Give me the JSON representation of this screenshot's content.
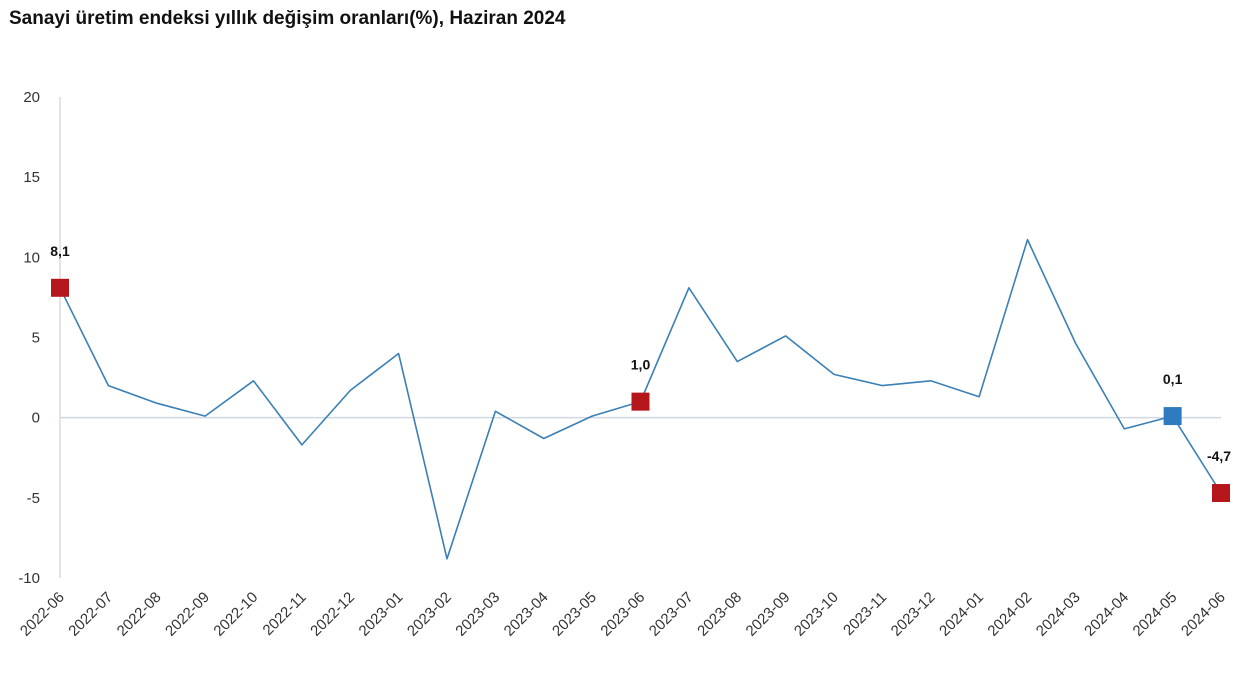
{
  "chart_data": {
    "type": "line",
    "title": "Sanayi üretim endeksi yıllık değişim oranları(%), Haziran 2024",
    "xlabel": "",
    "ylabel": "",
    "ylim": [
      -10,
      20
    ],
    "yticks": [
      20,
      15,
      10,
      5,
      0,
      -5,
      -10
    ],
    "grid": false,
    "legend": "none",
    "colors": {
      "line": "#3a7fb5",
      "highlight_red": "#b5161c",
      "highlight_blue": "#2f7bbf",
      "zero_line": "#d0d8e4",
      "axis": "#c8c8c8"
    },
    "x": [
      "2022-06",
      "2022-07",
      "2022-08",
      "2022-09",
      "2022-10",
      "2022-11",
      "2022-12",
      "2023-01",
      "2023-02",
      "2023-03",
      "2023-04",
      "2023-05",
      "2023-06",
      "2023-07",
      "2023-08",
      "2023-09",
      "2023-10",
      "2023-11",
      "2023-12",
      "2024-01",
      "2024-02",
      "2024-03",
      "2024-04",
      "2024-05",
      "2024-06"
    ],
    "series": [
      {
        "values": [
          8.1,
          2.0,
          0.9,
          0.1,
          2.3,
          -1.7,
          1.7,
          4.0,
          -8.8,
          0.4,
          -1.3,
          0.1,
          1.0,
          8.1,
          3.5,
          5.1,
          2.7,
          2.0,
          2.3,
          1.3,
          11.1,
          4.6,
          -0.7,
          0.1,
          -4.7
        ]
      }
    ],
    "highlighted_points": [
      {
        "x": "2022-06",
        "label": "8,1",
        "color": "red"
      },
      {
        "x": "2023-06",
        "label": "1,0",
        "color": "red"
      },
      {
        "x": "2024-05",
        "label": "0,1",
        "color": "blue"
      },
      {
        "x": "2024-06",
        "label": "-4,7",
        "color": "red"
      }
    ]
  }
}
